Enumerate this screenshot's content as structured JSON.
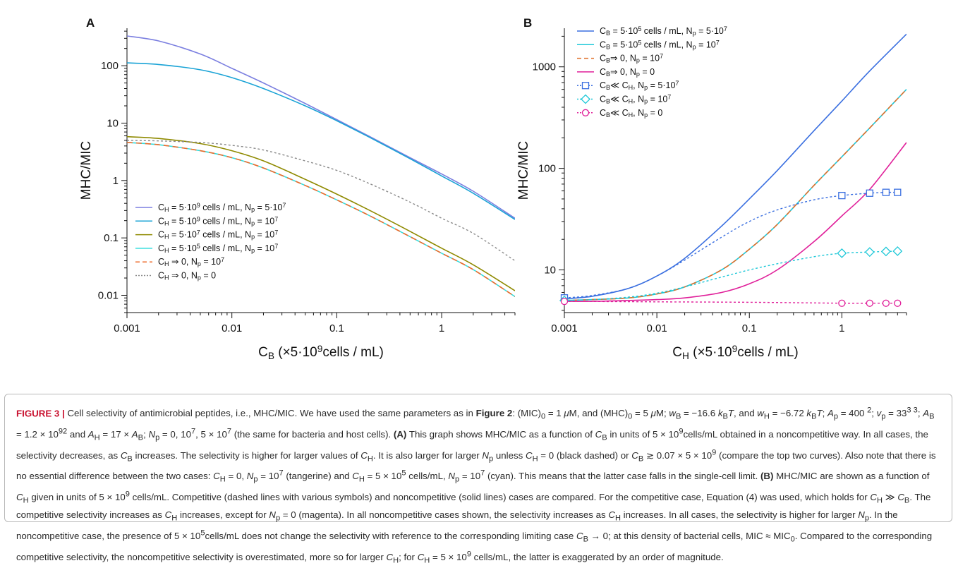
{
  "figure": {
    "panels": [
      {
        "letter": "A",
        "ylabel": "MHC/MIC",
        "xlabel_main": "C",
        "xlabel_sub": "B",
        "xlabel_rest_1": " (×5·10",
        "xlabel_sup": "9",
        "xlabel_rest_2": "cells / mL)",
        "x_ticks": [
          {
            "v": 0.001,
            "label": "0.001"
          },
          {
            "v": 0.01,
            "label": "0.01"
          },
          {
            "v": 0.1,
            "label": "0.1"
          },
          {
            "v": 1,
            "label": "1"
          }
        ],
        "y_ticks": [
          {
            "v": 0.01,
            "label": "0.01"
          },
          {
            "v": 0.1,
            "label": "0.1"
          },
          {
            "v": 1,
            "label": "1"
          },
          {
            "v": 10,
            "label": "10"
          },
          {
            "v": 100,
            "label": "100"
          }
        ],
        "legend": [
          {
            "pre": "C",
            "sub": "H",
            "rest": " = 5·10",
            "sup": "9",
            "rest2": " cells / mL, N",
            "sub2": "p",
            "rest3": " = 5·10",
            "sup2": "7"
          },
          {
            "pre": "C",
            "sub": "H",
            "rest": " = 5·10",
            "sup": "9",
            "rest2": " cells / mL, N",
            "sub2": "p",
            "rest3": " = 10",
            "sup2": "7"
          },
          {
            "pre": "C",
            "sub": "H",
            "rest": " = 5·10",
            "sup": "7",
            "rest2": " cells / mL, N",
            "sub2": "p",
            "rest3": " = 10",
            "sup2": "7"
          },
          {
            "pre": "C",
            "sub": "H",
            "rest": " = 5·10",
            "sup": "5",
            "rest2": " cells / mL, N",
            "sub2": "p",
            "rest3": " = 10",
            "sup2": "7"
          },
          {
            "pre": "C",
            "sub": "H",
            "rest": " ⇒ 0, N",
            "sup": "",
            "rest2": "",
            "sub2": "p",
            "rest3": " = 10",
            "sup2": "7"
          },
          {
            "pre": "C",
            "sub": "H",
            "rest": " ⇒ 0, N",
            "sup": "",
            "rest2": "",
            "sub2": "p",
            "rest3": " = 0",
            "sup2": ""
          }
        ]
      },
      {
        "letter": "B",
        "ylabel": "MHC/MIC",
        "xlabel_main": "C",
        "xlabel_sub": "H",
        "xlabel_rest_1": " (×5·10",
        "xlabel_sup": "9",
        "xlabel_rest_2": "cells / mL)",
        "x_ticks": [
          {
            "v": 0.001,
            "label": "0.001"
          },
          {
            "v": 0.01,
            "label": "0.01"
          },
          {
            "v": 0.1,
            "label": "0.1"
          },
          {
            "v": 1,
            "label": "1"
          }
        ],
        "y_ticks": [
          {
            "v": 10,
            "label": "10"
          },
          {
            "v": 100,
            "label": "100"
          },
          {
            "v": 1000,
            "label": "1000"
          }
        ],
        "legend": [
          {
            "pre": "C",
            "sub": "B",
            "rest": " = 5·10",
            "sup": "5",
            "rest2": " cells / mL, N",
            "sub2": "p",
            "rest3": " = 5·10",
            "sup2": "7"
          },
          {
            "pre": "C",
            "sub": "B",
            "rest": " = 5·10",
            "sup": "5",
            "rest2": " cells / mL, N",
            "sub2": "p",
            "rest3": " = 10",
            "sup2": "7"
          },
          {
            "pre": "C",
            "sub": "B",
            "rest": "⇒ 0, N",
            "sup": "",
            "rest2": "",
            "sub2": "p",
            "rest3": " = 10",
            "sup2": "7"
          },
          {
            "pre": "C",
            "sub": "B",
            "rest": "⇒ 0, N",
            "sup": "",
            "rest2": "",
            "sub2": "p",
            "rest3": " = 0",
            "sup2": ""
          },
          {
            "pre": "C",
            "sub": "B",
            "rest": "≪ C",
            "sup": "",
            "rest2": "",
            "sub2": "H",
            "rest3": ", N",
            "sup2": "",
            "sub3": "p",
            "rest4": " = 5·10",
            "sup3": "7"
          },
          {
            "pre": "C",
            "sub": "B",
            "rest": "≪ C",
            "sup": "",
            "rest2": "",
            "sub2": "H",
            "rest3": ", N",
            "sup2": "",
            "sub3": "p",
            "rest4": " = 10",
            "sup3": "7"
          },
          {
            "pre": "C",
            "sub": "B",
            "rest": "≪ C",
            "sup": "",
            "rest2": "",
            "sub2": "H",
            "rest3": ", N",
            "sup2": "",
            "sub3": "p",
            "rest4": " = 0",
            "sup3": ""
          }
        ]
      }
    ]
  },
  "chart_data": [
    {
      "type": "line",
      "panel": "A",
      "xscale": "log",
      "yscale": "log",
      "xlim": [
        0.001,
        5
      ],
      "ylim": [
        0.005,
        450
      ],
      "xlabel": "C_B (×5·10^9cells / mL)",
      "ylabel": "MHC/MIC",
      "legend_position": "bottom-left",
      "series": [
        {
          "name": "C_H = 5·10^9 cells / mL, N_p = 5·10^7",
          "color": "#7b7fe0",
          "dash": "solid",
          "x": [
            0.001,
            0.002,
            0.005,
            0.01,
            0.02,
            0.05,
            0.1,
            0.2,
            0.5,
            1,
            2,
            5
          ],
          "y": [
            330,
            270,
            160,
            90,
            50,
            22,
            11.5,
            6,
            2.5,
            1.3,
            0.65,
            0.22
          ]
        },
        {
          "name": "C_H = 5·10^9 cells / mL, N_p = 10^7",
          "color": "#1aa3d6",
          "dash": "solid",
          "x": [
            0.001,
            0.002,
            0.005,
            0.01,
            0.02,
            0.05,
            0.1,
            0.2,
            0.5,
            1,
            2,
            5
          ],
          "y": [
            112,
            105,
            85,
            62,
            40,
            20,
            11,
            5.8,
            2.4,
            1.2,
            0.6,
            0.21
          ]
        },
        {
          "name": "C_H = 5·10^7 cells / mL, N_p = 10^7",
          "color": "#8f8a00",
          "dash": "solid",
          "x": [
            0.001,
            0.002,
            0.005,
            0.01,
            0.02,
            0.05,
            0.1,
            0.2,
            0.5,
            1,
            2,
            5
          ],
          "y": [
            5.8,
            5.4,
            4.4,
            3.3,
            2.2,
            1.05,
            0.58,
            0.31,
            0.13,
            0.066,
            0.034,
            0.012
          ]
        },
        {
          "name": "C_H = 5·10^5 cells / mL, N_p = 10^7",
          "color": "#33dddd",
          "dash": "solid",
          "x": [
            0.001,
            0.002,
            0.005,
            0.01,
            0.02,
            0.05,
            0.1,
            0.2,
            0.5,
            1,
            2,
            5
          ],
          "y": [
            4.6,
            4.2,
            3.3,
            2.5,
            1.65,
            0.82,
            0.46,
            0.25,
            0.105,
            0.054,
            0.028,
            0.0095
          ]
        },
        {
          "name": "C_H ⇒ 0, N_p = 10^7",
          "color": "#ee6a2a",
          "dash": "dashed",
          "x": [
            0.001,
            0.002,
            0.005,
            0.01,
            0.02,
            0.05,
            0.1,
            0.2,
            0.5,
            1,
            2,
            5
          ],
          "y": [
            4.6,
            4.2,
            3.3,
            2.5,
            1.65,
            0.82,
            0.46,
            0.25,
            0.105,
            0.054,
            0.028,
            0.0095
          ]
        },
        {
          "name": "C_H ⇒ 0, N_p = 0",
          "color": "#8a8a8a",
          "dash": "dotted",
          "x": [
            0.001,
            0.002,
            0.005,
            0.01,
            0.02,
            0.05,
            0.1,
            0.2,
            0.5,
            1,
            2,
            5
          ],
          "y": [
            5,
            4.9,
            4.6,
            4.1,
            3.4,
            2.2,
            1.5,
            0.9,
            0.42,
            0.22,
            0.12,
            0.04
          ]
        }
      ]
    },
    {
      "type": "line",
      "panel": "B",
      "xscale": "log",
      "yscale": "log",
      "xlim": [
        0.001,
        5
      ],
      "ylim": [
        3.8,
        2400
      ],
      "xlabel": "C_H (×5·10^9cells / mL)",
      "ylabel": "MHC/MIC",
      "legend_position": "top-left",
      "series": [
        {
          "name": "C_B = 5·10^5 cells / mL, N_p = 5·10^7",
          "color": "#3a6fe0",
          "dash": "solid",
          "marker": "none",
          "x": [
            0.001,
            0.002,
            0.005,
            0.01,
            0.02,
            0.05,
            0.1,
            0.2,
            0.5,
            1,
            2,
            5
          ],
          "y": [
            5.2,
            5.5,
            6.6,
            8.7,
            13,
            27,
            50,
            95,
            235,
            460,
            910,
            2100
          ]
        },
        {
          "name": "C_B = 5·10^5 cells / mL, N_p = 10^7",
          "color": "#1ec8d8",
          "dash": "solid",
          "marker": "none",
          "x": [
            0.001,
            0.002,
            0.005,
            0.01,
            0.02,
            0.05,
            0.1,
            0.2,
            0.5,
            1,
            2,
            5
          ],
          "y": [
            5.0,
            5.1,
            5.3,
            5.8,
            6.8,
            10,
            16,
            28,
            68,
            130,
            250,
            600
          ]
        },
        {
          "name": "C_B⇒ 0, N_p = 10^7",
          "color": "#e0702a",
          "dash": "dashed",
          "marker": "none",
          "x": [
            0.001,
            0.002,
            0.005,
            0.01,
            0.02,
            0.05,
            0.1,
            0.2,
            0.5,
            1,
            2,
            5
          ],
          "y": [
            5.0,
            5.1,
            5.3,
            5.8,
            6.8,
            10,
            16,
            28,
            68,
            130,
            250,
            600
          ]
        },
        {
          "name": "C_B⇒ 0, N_p = 0",
          "color": "#e0209a",
          "dash": "solid",
          "marker": "none",
          "x": [
            0.001,
            0.002,
            0.005,
            0.01,
            0.02,
            0.05,
            0.1,
            0.2,
            0.5,
            1,
            2,
            5
          ],
          "y": [
            4.9,
            4.9,
            5.0,
            5.1,
            5.3,
            6.0,
            7.3,
            10,
            19,
            34,
            62,
            180
          ]
        },
        {
          "name": "C_B≪ C_H, N_p = 5·10^7",
          "color": "#3a6fe0",
          "dash": "dotted",
          "marker": "square",
          "x": [
            0.001,
            0.002,
            0.005,
            0.01,
            0.02,
            0.05,
            0.1,
            0.2,
            0.5,
            1,
            2,
            3,
            4
          ],
          "y": [
            5.3,
            5.6,
            6.6,
            8.7,
            12.5,
            21,
            30,
            39,
            49,
            54,
            57,
            58,
            58
          ],
          "marker_x": [
            0.001,
            1,
            2,
            3,
            4
          ]
        },
        {
          "name": "C_B≪ C_H, N_p = 10^7",
          "color": "#1ec8d8",
          "dash": "dotted",
          "marker": "diamond",
          "x": [
            0.001,
            0.002,
            0.005,
            0.01,
            0.02,
            0.05,
            0.1,
            0.2,
            0.5,
            1,
            2,
            3,
            4
          ],
          "y": [
            5.0,
            5.1,
            5.4,
            5.9,
            6.8,
            8.5,
            10,
            11.5,
            13.5,
            14.6,
            15,
            15.2,
            15.3
          ],
          "marker_x": [
            0.001,
            1,
            2,
            3,
            4
          ]
        },
        {
          "name": "C_B≪ C_H, N_p = 0",
          "color": "#e0209a",
          "dash": "dotted",
          "marker": "circle",
          "x": [
            0.001,
            0.01,
            0.1,
            1,
            2,
            3,
            4
          ],
          "y": [
            4.9,
            4.85,
            4.8,
            4.7,
            4.7,
            4.7,
            4.7
          ],
          "marker_x": [
            0.001,
            1,
            2,
            3,
            4
          ]
        }
      ]
    }
  ],
  "caption": {
    "lead": "FIGURE 3 |",
    "html": " Cell selectivity of antimicrobial peptides, i.e., MHC/MIC. We have used the same parameters as in <b>Figure 2</b>: (MIC)<sub>0</sub> = 1 <i>μ</i>M, and (MHC)<sub>0</sub> = 5 <i>μ</i>M; <i>w</i><sub>B</sub> = −16.6 <i>k</i><sub>B</sub><i>T</i>, and <i>w</i><sub>H</sub> = −6.72 <i>k</i><sub>B</sub><i>T</i>; <i>A</i><sub>p</sub> = 400 <sup>2</sup>; <i>v</i><sub>p</sub> = 33<sup>3 3</sup>; <i>A</i><sub>B</sub> = 1.2 × 10<sup>92</sup> and <i>A</i><sub>H</sub> = 17 × <i>A</i><sub>B</sub>; <i>N</i><sub>p</sub> = 0, 10<sup>7</sup>, 5 × 10<sup>7</sup> (the same for bacteria and host cells). <b>(A)</b> This graph shows MHC/MIC as a function of <i>C</i><sub>B</sub> in units of 5 × 10<sup>9</sup>cells/mL obtained in a noncompetitive way. In all cases, the selectivity decreases, as <i>C</i><sub>B</sub> increases. The selectivity is higher for larger values of <i>C</i><sub>H</sub>. It is also larger for larger <i>N</i><sub>p</sub> unless <i>C</i><sub>H</sub> = 0 (black dashed) or <i>C</i><sub>B</sub> ≳ 0.07 × 5 × 10<sup>9</sup> (compare the top two curves). Also note that there is no essential difference between the two cases: <i>C</i><sub>H</sub> = 0, <i>N</i><sub>p</sub> = 10<sup>7</sup> (tangerine) and <i>C</i><sub>H</sub> = 5 × 10<sup>5</sup> cells/mL, <i>N</i><sub>p</sub> = 10<sup>7</sup> (cyan). This means that the latter case falls in the single-cell limit. <b>(B)</b> MHC/MIC are shown as a function of <i>C</i><sub>H</sub> given in units of 5 × 10<sup>9</sup> cells/mL. Competitive (dashed lines with various symbols) and noncompetitive (solid lines) cases are compared. For the competitive case, Equation (4) was used, which holds for <i>C</i><sub>H</sub> ≫ <i>C</i><sub>B</sub>. The competitive selectivity increases as <i>C</i><sub>H</sub> increases, except for <i>N</i><sub>p</sub> = 0 (magenta). In all noncompetitive cases shown, the selectivity increases as <i>C</i><sub>H</sub> increases. In all cases, the selectivity is higher for larger <i>N</i><sub>p</sub>. In the noncompetitive case, the presence of 5 × 10<sup>5</sup>cells/mL does not change the selectivity with reference to the corresponding limiting case <i>C</i><sub>B</sub> → 0; at this density of bacterial cells, MIC ≈ MIC<sub>0</sub>. Compared to the corresponding competitive selectivity, the noncompetitive selectivity is overestimated, more so for larger <i>C</i><sub>H</sub>; for <i>C</i><sub>H</sub> = 5 × 10<sup>9</sup> cells/mL, the latter is exaggerated by an order of magnitude."
  }
}
